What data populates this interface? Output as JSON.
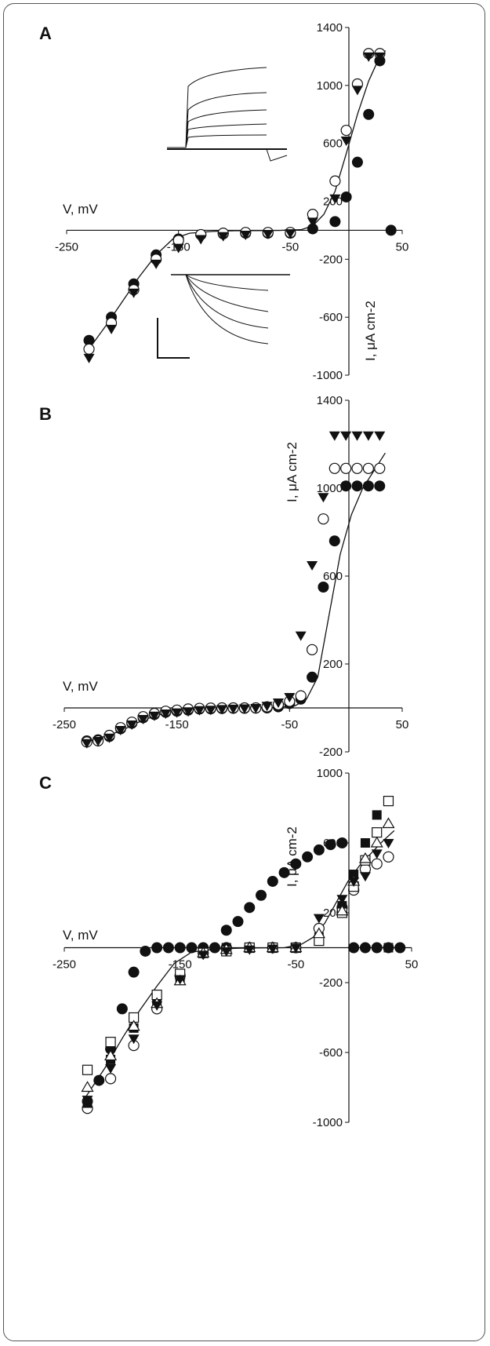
{
  "colors": {
    "ink": "#111111",
    "frame": "#555555",
    "background": "#ffffff"
  },
  "chart_data": [
    {
      "panel": "A",
      "type": "scatter",
      "xlabel": "V, mV",
      "ylabel": "I, μA cm-2",
      "xlim": [
        -250,
        50
      ],
      "ylim": [
        -1000,
        1400
      ],
      "xticks": [
        "-250",
        "-150",
        "-50",
        "50"
      ],
      "yticks": [
        "-1000",
        "-600",
        "-200",
        "200",
        "600",
        "1000",
        "1400"
      ],
      "grid": false,
      "legend": "none",
      "inset_traces": true,
      "scale_bar": true,
      "series": [
        {
          "marker": "filled-circle",
          "x": [
            -230,
            -210,
            -190,
            -170,
            -150,
            -130,
            -110,
            -90,
            -70,
            -50,
            -30,
            -10,
            0,
            10,
            20,
            30,
            40
          ],
          "y": [
            -760,
            -600,
            -370,
            -170,
            -60,
            -30,
            -25,
            -20,
            -20,
            -20,
            10,
            60,
            230,
            470,
            800,
            1170,
            0
          ],
          "note": ""
        },
        {
          "marker": "open-circle",
          "x": [
            -230,
            -210,
            -190,
            -170,
            -150,
            -130,
            -110,
            -90,
            -70,
            -50,
            -30,
            -10,
            0,
            10,
            20,
            30
          ],
          "y": [
            -820,
            -640,
            -410,
            -200,
            -70,
            -30,
            -20,
            -15,
            -15,
            -15,
            110,
            340,
            690,
            1010,
            1220,
            1220
          ]
        },
        {
          "marker": "filled-triangle-down",
          "x": [
            -230,
            -210,
            -190,
            -170,
            -150,
            -130,
            -110,
            -90,
            -70,
            -50,
            -30,
            -10,
            0,
            10,
            20,
            30
          ],
          "y": [
            -880,
            -680,
            -430,
            -230,
            -120,
            -60,
            -40,
            -30,
            -25,
            -20,
            60,
            220,
            620,
            970,
            1200,
            1200
          ]
        },
        {
          "marker": "fit-line",
          "x": [
            -232,
            -215,
            -200,
            -185,
            -170,
            -155,
            -140,
            -120,
            -100,
            -80,
            -60,
            -40,
            -30,
            -20,
            -10,
            0,
            10,
            20,
            30,
            35
          ],
          "y": [
            -840,
            -660,
            -490,
            -320,
            -170,
            -60,
            -20,
            -8,
            -3,
            -2,
            -1,
            5,
            30,
            110,
            270,
            530,
            800,
            1030,
            1200,
            1240
          ]
        }
      ]
    },
    {
      "panel": "B",
      "type": "scatter",
      "xlabel": "V, mV",
      "ylabel": "I, μA cm-2",
      "xlim": [
        -250,
        50
      ],
      "ylim": [
        -200,
        1400
      ],
      "xticks": [
        "-250",
        "-150",
        "-50",
        "50"
      ],
      "yticks": [
        "-200",
        "200",
        "600",
        "1000",
        "1400"
      ],
      "grid": false,
      "legend": "none",
      "series": [
        {
          "marker": "filled-circle",
          "x": [
            -230,
            -220,
            -210,
            -200,
            -190,
            -180,
            -170,
            -160,
            -150,
            -140,
            -130,
            -120,
            -110,
            -100,
            -90,
            -80,
            -70,
            -60,
            -50,
            -40,
            -30,
            -20,
            -10,
            0,
            10,
            20,
            30
          ],
          "y": [
            -150,
            -145,
            -130,
            -95,
            -70,
            -45,
            -30,
            -20,
            -15,
            -10,
            -5,
            -4,
            -3,
            -2,
            -2,
            -1,
            0,
            5,
            20,
            40,
            140,
            550,
            760,
            1010,
            1010,
            1010,
            1010
          ]
        },
        {
          "marker": "open-circle",
          "x": [
            -230,
            -220,
            -210,
            -200,
            -190,
            -180,
            -170,
            -160,
            -150,
            -140,
            -130,
            -120,
            -110,
            -100,
            -90,
            -80,
            -70,
            -60,
            -50,
            -40,
            -30,
            -20,
            -10,
            0,
            10,
            20,
            30
          ],
          "y": [
            -155,
            -150,
            -125,
            -90,
            -65,
            -40,
            -25,
            -15,
            -10,
            -5,
            -2,
            -1,
            0,
            0,
            0,
            0,
            5,
            15,
            30,
            55,
            265,
            860,
            1090,
            1090,
            1090,
            1090,
            1090
          ]
        },
        {
          "marker": "filled-triangle-down",
          "x": [
            -230,
            -220,
            -210,
            -200,
            -190,
            -180,
            -170,
            -160,
            -150,
            -140,
            -130,
            -120,
            -110,
            -100,
            -90,
            -80,
            -70,
            -60,
            -50,
            -40,
            -30,
            -20,
            -10,
            0,
            10,
            20,
            30
          ],
          "y": [
            -160,
            -150,
            -135,
            -100,
            -75,
            -50,
            -35,
            -25,
            -20,
            -15,
            -10,
            -8,
            -5,
            -3,
            -2,
            0,
            10,
            25,
            50,
            330,
            650,
            960,
            1240,
            1240,
            1240,
            1240,
            1240
          ]
        },
        {
          "marker": "fit-line",
          "x": [
            -232,
            -200,
            -180,
            -160,
            -140,
            -120,
            -100,
            -80,
            -60,
            -45,
            -35,
            -25,
            -15,
            -5,
            5,
            15,
            25,
            35
          ],
          "y": [
            -160,
            -105,
            -55,
            -22,
            -8,
            -3,
            -1,
            0,
            2,
            10,
            40,
            140,
            420,
            700,
            880,
            1000,
            1080,
            1160
          ]
        }
      ]
    },
    {
      "panel": "C",
      "type": "scatter",
      "xlabel": "V, mV",
      "ylabel": "I, μA cm-2",
      "xlim": [
        -250,
        50
      ],
      "ylim": [
        -1000,
        1000
      ],
      "xticks": [
        "-250",
        "-150",
        "-50",
        "50"
      ],
      "yticks": [
        "-1000",
        "-600",
        "-200",
        "200",
        "600",
        "1000"
      ],
      "grid": false,
      "legend": "none",
      "series": [
        {
          "marker": "filled-circle",
          "x": [
            -230,
            -220,
            -210,
            -200,
            -190,
            -180,
            -170,
            -160,
            -150,
            -140,
            -130,
            -120,
            -110,
            -100,
            -90,
            -80,
            -70,
            -60,
            -50,
            -40,
            -30,
            -20,
            -10,
            0,
            10,
            20,
            30,
            40
          ],
          "y": [
            -880,
            -760,
            -580,
            -350,
            -140,
            -20,
            0,
            0,
            0,
            0,
            0,
            0,
            100,
            150,
            230,
            300,
            380,
            430,
            480,
            520,
            560,
            590,
            600,
            0,
            0,
            0,
            0,
            0
          ]
        },
        {
          "marker": "open-circle",
          "x": [
            -230,
            -210,
            -190,
            -170,
            -150,
            -130,
            -110,
            -90,
            -70,
            -50,
            -30,
            -10,
            0,
            10,
            20,
            30
          ],
          "y": [
            -920,
            -750,
            -560,
            -350,
            -160,
            -30,
            0,
            0,
            0,
            0,
            110,
            230,
            330,
            450,
            480,
            520
          ]
        },
        {
          "marker": "filled-square",
          "x": [
            -230,
            -210,
            -190,
            -170,
            -150,
            -130,
            -110,
            -90,
            -70,
            -50,
            -30,
            -10,
            0,
            10,
            20,
            30
          ],
          "y": [
            -890,
            -640,
            -460,
            -300,
            -170,
            -30,
            0,
            0,
            0,
            0,
            60,
            240,
            420,
            600,
            760,
            0
          ]
        },
        {
          "marker": "open-square",
          "x": [
            -230,
            -210,
            -190,
            -170,
            -150,
            -130,
            -110,
            -90,
            -70,
            -50,
            -30,
            -10,
            0,
            10,
            20,
            30
          ],
          "y": [
            -700,
            -540,
            -400,
            -270,
            -150,
            -30,
            -20,
            0,
            0,
            0,
            40,
            200,
            350,
            500,
            660,
            840
          ]
        },
        {
          "marker": "open-triangle-up",
          "x": [
            -230,
            -210,
            -190,
            -170,
            -150,
            -130,
            -110,
            -90,
            -70,
            -50,
            -30,
            -10,
            0,
            10,
            20,
            30
          ],
          "y": [
            -800,
            -620,
            -450,
            -320,
            -190,
            -30,
            -10,
            0,
            0,
            0,
            80,
            210,
            380,
            510,
            600,
            710
          ]
        },
        {
          "marker": "filled-triangle-down",
          "x": [
            -230,
            -210,
            -190,
            -170,
            -150,
            -130,
            -110,
            -90,
            -70,
            -50,
            -30,
            -10,
            0,
            10,
            20,
            30
          ],
          "y": [
            -870,
            -690,
            -520,
            -330,
            -180,
            -40,
            -20,
            -10,
            -5,
            0,
            170,
            280,
            380,
            410,
            540,
            600
          ]
        },
        {
          "marker": "fit-line",
          "x": [
            -232,
            -215,
            -200,
            -185,
            -170,
            -155,
            -140,
            -120,
            -100,
            -80,
            -60,
            -45,
            -35,
            -25,
            -15,
            -5,
            5,
            15,
            25,
            35
          ],
          "y": [
            -860,
            -690,
            -520,
            -360,
            -220,
            -90,
            -25,
            -8,
            -3,
            -1,
            0,
            20,
            60,
            140,
            260,
            380,
            470,
            540,
            610,
            670
          ]
        }
      ]
    }
  ],
  "panels": {
    "a": {
      "label": "A",
      "xlabel": "V, mV",
      "ylabel": "I, μA cm-2"
    },
    "b": {
      "label": "B",
      "xlabel": "V, mV",
      "ylabel": "I, μA cm-2"
    },
    "c": {
      "label": "C",
      "xlabel": "V, mV",
      "ylabel": "I, μA cm-2"
    }
  }
}
